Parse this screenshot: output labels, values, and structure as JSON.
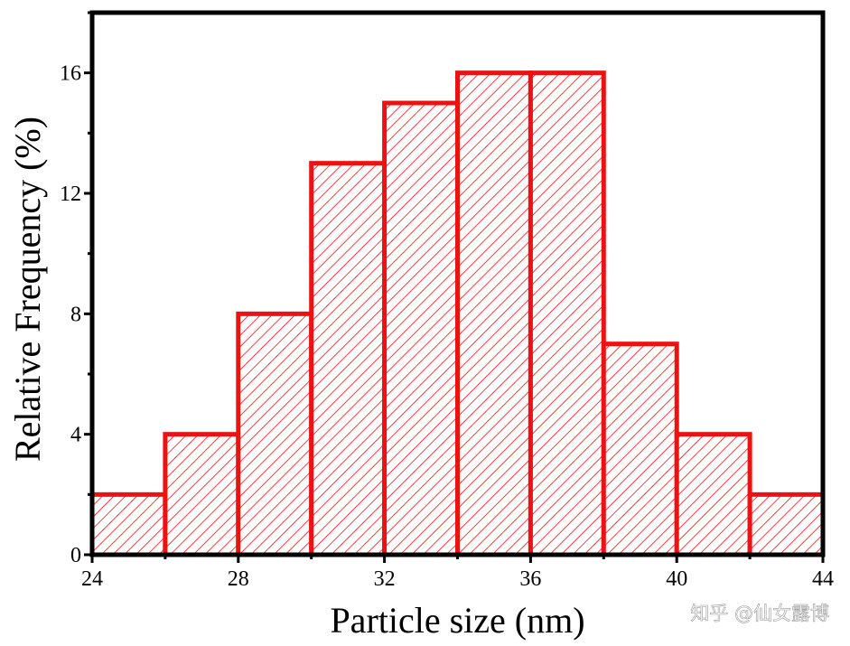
{
  "chart_data": {
    "type": "bar",
    "title": "",
    "xlabel": "Particle size (nm)",
    "ylabel": "Relative Frequency (%)",
    "bins": [
      {
        "start": 24,
        "end": 26,
        "value": 2
      },
      {
        "start": 26,
        "end": 28,
        "value": 4
      },
      {
        "start": 28,
        "end": 30,
        "value": 8
      },
      {
        "start": 30,
        "end": 32,
        "value": 13
      },
      {
        "start": 32,
        "end": 34,
        "value": 15
      },
      {
        "start": 34,
        "end": 36,
        "value": 16
      },
      {
        "start": 36,
        "end": 38,
        "value": 16
      },
      {
        "start": 38,
        "end": 40,
        "value": 7
      },
      {
        "start": 40,
        "end": 42,
        "value": 4
      },
      {
        "start": 42,
        "end": 44,
        "value": 2
      }
    ],
    "xlim": [
      24,
      44
    ],
    "ylim": [
      0,
      18
    ],
    "xticks": [
      "24",
      "28",
      "32",
      "36",
      "40",
      "44"
    ],
    "yticks": [
      "0",
      "4",
      "8",
      "12",
      "16"
    ],
    "bar_color": "#ee1111",
    "grid": false
  },
  "watermark": "知乎 @仙女露博"
}
